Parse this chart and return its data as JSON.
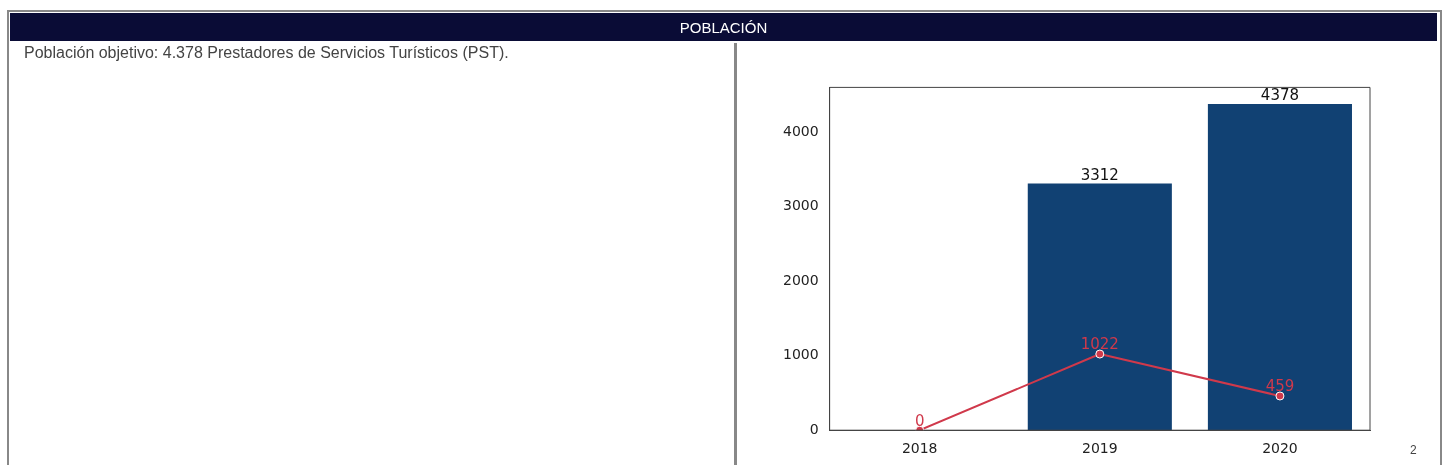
{
  "chart_data": {
    "type": "bar",
    "title": "POBLACIÓN",
    "subtitle": "Población objetivo: 4.378 Prestadores de Servicios Turísticos (PST).",
    "categories": [
      "2018",
      "2019",
      "2020"
    ],
    "series": [
      {
        "color": "#114173",
        "values": [
          null,
          3312,
          4378
        ]
      },
      {
        "type": "line",
        "color": "#d0394b",
        "values": [
          0,
          1022,
          459
        ]
      }
    ],
    "ylim": [
      0,
      4600
    ],
    "yticks": [
      0,
      1000,
      2000,
      3000,
      4000
    ],
    "grid": false,
    "legend": false,
    "marker": "circle",
    "data_labels": true,
    "annotations": [
      "2"
    ]
  }
}
